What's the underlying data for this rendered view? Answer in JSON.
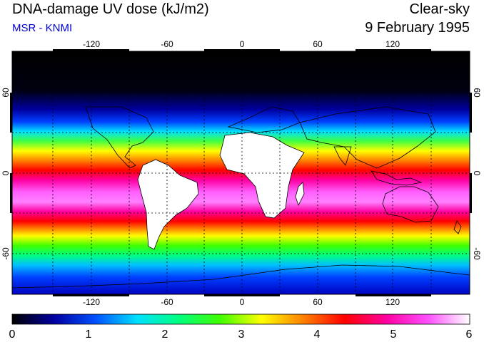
{
  "header": {
    "title": "DNA-damage UV dose (kJ/m2)",
    "subtitle": "MSR - KNMI",
    "condition": "Clear-sky",
    "date": "9 February 1995"
  },
  "map": {
    "lon_ticks": [
      "-120",
      "-60",
      "0",
      "60",
      "120"
    ],
    "lat_ticks": [
      "60",
      "0",
      "-60"
    ],
    "lat_ticks_right": [
      "60",
      "0",
      "-60"
    ],
    "gridlines": true
  },
  "colorbar": {
    "labels": [
      "0",
      "1",
      "2",
      "3",
      "4",
      "5",
      "6"
    ],
    "colors": [
      "#000000",
      "#0000a0",
      "#0050ff",
      "#00e0ff",
      "#00ff80",
      "#40ff00",
      "#ffff00",
      "#ff8000",
      "#ff0000",
      "#ff00a0",
      "#ff50ff",
      "#ffffff"
    ]
  }
}
